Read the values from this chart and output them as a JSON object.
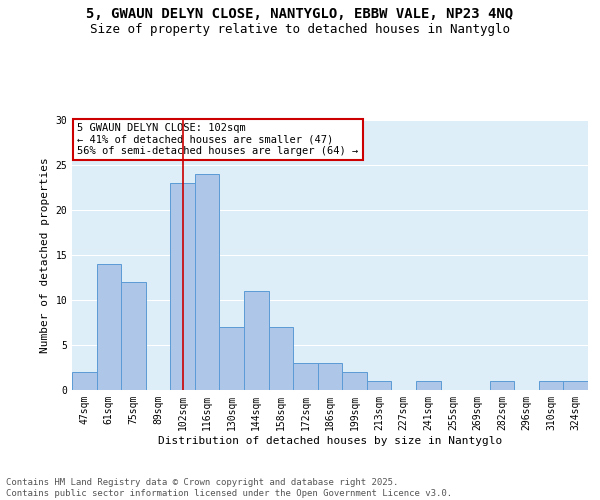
{
  "title_line1": "5, GWAUN DELYN CLOSE, NANTYGLO, EBBW VALE, NP23 4NQ",
  "title_line2": "Size of property relative to detached houses in Nantyglo",
  "xlabel": "Distribution of detached houses by size in Nantyglo",
  "ylabel": "Number of detached properties",
  "categories": [
    "47sqm",
    "61sqm",
    "75sqm",
    "89sqm",
    "102sqm",
    "116sqm",
    "130sqm",
    "144sqm",
    "158sqm",
    "172sqm",
    "186sqm",
    "199sqm",
    "213sqm",
    "227sqm",
    "241sqm",
    "255sqm",
    "269sqm",
    "282sqm",
    "296sqm",
    "310sqm",
    "324sqm"
  ],
  "values": [
    2,
    14,
    12,
    0,
    23,
    24,
    7,
    11,
    7,
    3,
    3,
    2,
    1,
    0,
    1,
    0,
    0,
    1,
    0,
    1,
    1
  ],
  "bar_color": "#aec6e8",
  "bar_edge_color": "#5b9bd5",
  "background_color": "#ddeef9",
  "grid_color": "white",
  "vline_x": 4,
  "vline_color": "#cc0000",
  "annotation_text": "5 GWAUN DELYN CLOSE: 102sqm\n← 41% of detached houses are smaller (47)\n56% of semi-detached houses are larger (64) →",
  "annotation_box_color": "white",
  "annotation_box_edge_color": "#cc0000",
  "ylim": [
    0,
    30
  ],
  "yticks": [
    0,
    5,
    10,
    15,
    20,
    25,
    30
  ],
  "footer_text": "Contains HM Land Registry data © Crown copyright and database right 2025.\nContains public sector information licensed under the Open Government Licence v3.0.",
  "title_fontsize": 10,
  "subtitle_fontsize": 9,
  "axis_label_fontsize": 8,
  "tick_fontsize": 7,
  "annotation_fontsize": 7.5,
  "footer_fontsize": 6.5
}
